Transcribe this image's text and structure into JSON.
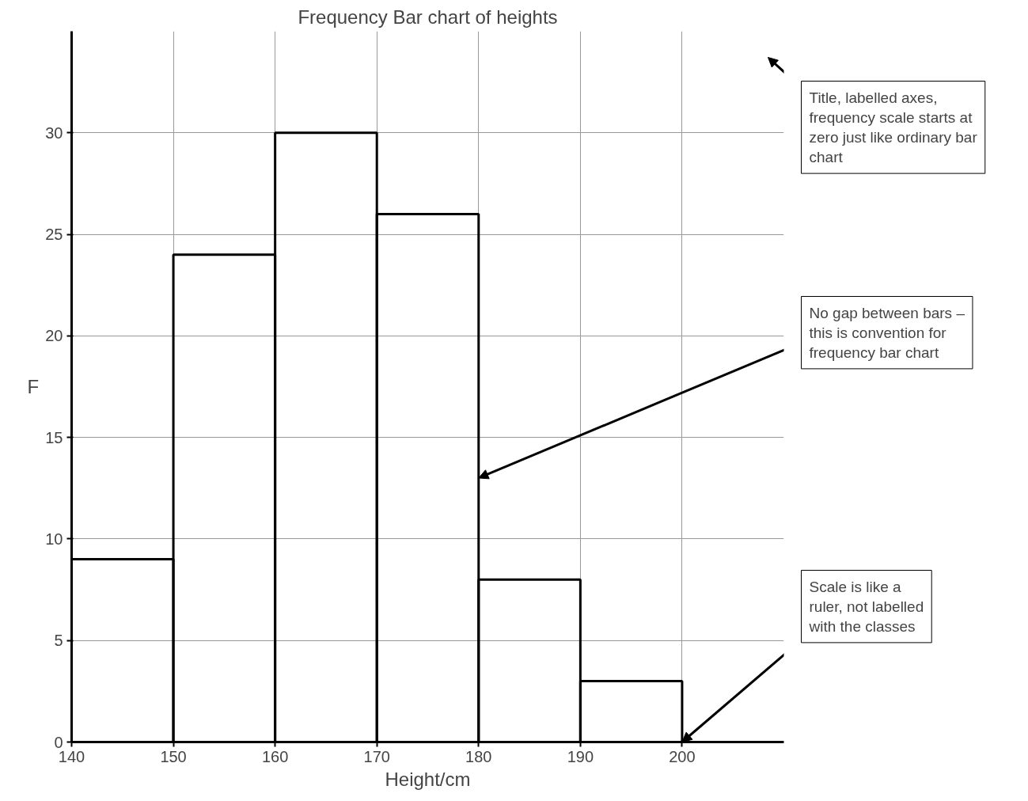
{
  "chart_data": {
    "type": "histogram",
    "title": "Frequency Bar chart of heights",
    "xlabel": "Height/cm",
    "ylabel": "F",
    "bins": [
      140,
      150,
      160,
      170,
      180,
      190,
      200
    ],
    "values": [
      9,
      24,
      30,
      26,
      8,
      3
    ],
    "color": "#000000",
    "xlim": [
      140,
      210
    ],
    "xticks": [
      140,
      150,
      160,
      170,
      180,
      190,
      200
    ],
    "ylim": [
      0,
      35
    ],
    "yticks": [
      0,
      5,
      10,
      15,
      20,
      25,
      30
    ],
    "grid": true,
    "annotations": [
      {
        "text": "Title, labelled axes,\nfrequency scale starts at\nzero just like ordinary bar\nchart"
      },
      {
        "text": "No gap between bars –\nthis is convention for\nfrequency bar chart",
        "x": 180,
        "y": 13
      },
      {
        "text": "Scale is like a\nruler, not labelled\nwith the classes",
        "x": 200,
        "y": 0
      }
    ]
  }
}
